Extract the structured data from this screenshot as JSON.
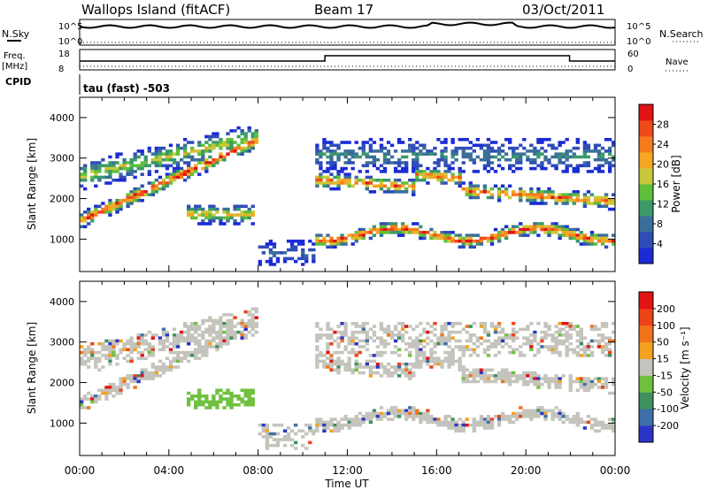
{
  "header": {
    "station": "Wallops Island (fitACF)",
    "beam": "Beam 17",
    "date": "03/Oct/2011"
  },
  "strip1": {
    "left_label": "N.Sky",
    "left_top_tick": "10^5",
    "left_bottom_tick": "10^0",
    "right_top_tick": "10^5",
    "right_bottom_tick": "10^0",
    "right_label": "N.Search"
  },
  "strip2": {
    "left_label": "Freq.",
    "left_unit": "[MHz]",
    "left_top_tick": "18",
    "left_bottom_tick": "8",
    "right_top_tick": "60",
    "right_bottom_tick": "0",
    "right_label": "Nave"
  },
  "cpid": {
    "label": "CPID",
    "mode_text": "tau (fast) -503"
  },
  "colors": {
    "power_scale": [
      "#1a2bd6",
      "#2f4db8",
      "#3b6f9a",
      "#3a9a6a",
      "#5fbf3a",
      "#c8c83a",
      "#f5a623",
      "#f57c1e",
      "#ef4a1a",
      "#e01414"
    ],
    "velocity_scale": [
      "#2a35c8",
      "#3f6fa8",
      "#3f9060",
      "#70c040",
      "#c4c4bc",
      "#f2a21e",
      "#f2741a",
      "#ec4418",
      "#e01414"
    ]
  },
  "chart_data": [
    {
      "type": "heatmap",
      "name": "power",
      "xlabel": "",
      "ylabel": "Slant Range [km]",
      "x_ticks": [
        "00:00",
        "04:00",
        "08:00",
        "12:00",
        "16:00",
        "20:00",
        "00:00"
      ],
      "y_ticks": [
        "1000",
        "2000",
        "3000",
        "4000"
      ],
      "ylim": [
        200,
        4500
      ],
      "colorbar_label": "Power [dB]",
      "colorbar_ticks": [
        "28",
        "24",
        "20",
        "16",
        "12",
        "8",
        "4"
      ]
    },
    {
      "type": "heatmap",
      "name": "velocity",
      "xlabel": "Time UT",
      "ylabel": "Slant Range [km]",
      "x_ticks": [
        "00:00",
        "04:00",
        "08:00",
        "12:00",
        "16:00",
        "20:00",
        "00:00"
      ],
      "y_ticks": [
        "1000",
        "2000",
        "3000",
        "4000"
      ],
      "ylim": [
        200,
        4500
      ],
      "colorbar_label": "Velocity [m s⁻¹]",
      "colorbar_ticks": [
        "200",
        "100",
        "50",
        "15",
        "-15",
        "-50",
        "-100",
        "-200"
      ]
    }
  ]
}
